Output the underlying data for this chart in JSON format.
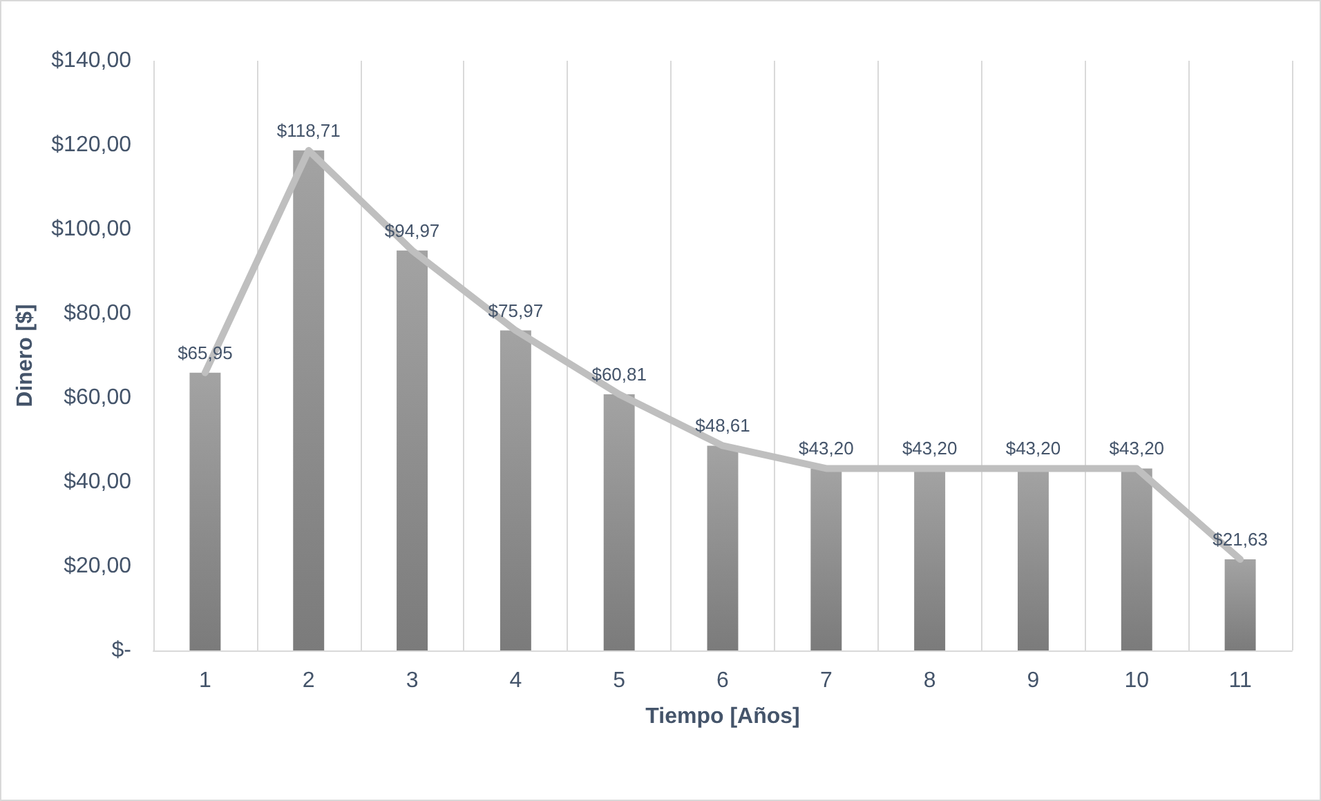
{
  "chart_data": {
    "type": "bar",
    "xlabel": "Tiempo [Años]",
    "ylabel": "Dinero [$]",
    "categories": [
      "1",
      "2",
      "3",
      "4",
      "5",
      "6",
      "7",
      "8",
      "9",
      "10",
      "11"
    ],
    "series": [
      {
        "color": "#8c8c8c",
        "values": [
          65.95,
          118.71,
          94.97,
          75.97,
          60.81,
          48.61,
          43.2,
          43.2,
          43.2,
          43.2,
          21.63
        ]
      },
      {
        "type": "line",
        "color": "#bfbfbf",
        "marker": "none",
        "values": [
          65.95,
          118.71,
          94.97,
          75.97,
          60.81,
          48.61,
          43.2,
          43.2,
          43.2,
          43.2,
          21.63
        ],
        "value_labels": [
          "$65,95",
          "$118,71",
          "$94,97",
          "$75,97",
          "$60,81",
          "$48,61",
          "$43,20",
          "$43,20",
          "$43,20",
          "$43,20",
          "$21,63"
        ]
      }
    ],
    "ylim": [
      0,
      140
    ],
    "yticks": [
      {
        "value": 0,
        "label": "$-"
      },
      {
        "value": 20,
        "label": "$20,00"
      },
      {
        "value": 40,
        "label": "$40,00"
      },
      {
        "value": 60,
        "label": "$60,00"
      },
      {
        "value": 80,
        "label": "$80,00"
      },
      {
        "value": 100,
        "label": "$100,00"
      },
      {
        "value": 120,
        "label": "$120,00"
      },
      {
        "value": 140,
        "label": "$140,00"
      }
    ],
    "grid": "x"
  }
}
